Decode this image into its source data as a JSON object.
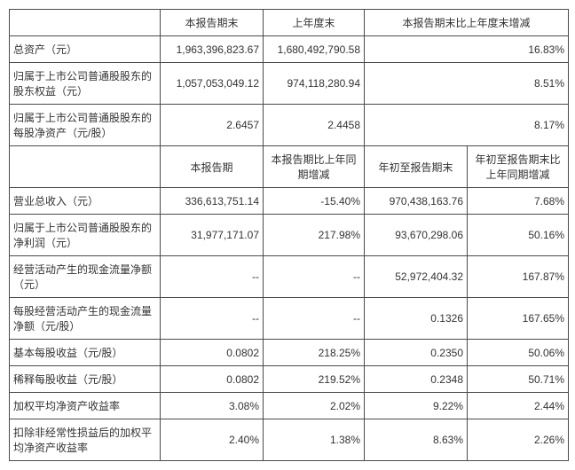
{
  "table1": {
    "headers": [
      "",
      "本报告期末",
      "上年度末",
      "本报告期末比上年度末增减"
    ],
    "rows": [
      {
        "label": "总资产（元）",
        "v1": "1,963,396,823.67",
        "v2": "1,680,492,790.58",
        "v3": "16.83%"
      },
      {
        "label": "归属于上市公司普通股股东的股东权益（元）",
        "v1": "1,057,053,049.12",
        "v2": "974,118,280.94",
        "v3": "8.51%"
      },
      {
        "label": "归属于上市公司普通股股东的每股净资产（元/股）",
        "v1": "2.6457",
        "v2": "2.4458",
        "v3": "8.17%"
      }
    ]
  },
  "table2": {
    "headers": [
      "",
      "本报告期",
      "本报告期比上年同期增减",
      "年初至报告期末",
      "年初至报告期末比上年同期增减"
    ],
    "rows": [
      {
        "label": "营业总收入（元）",
        "v1": "336,613,751.14",
        "v2": "-15.40%",
        "v3": "970,438,163.76",
        "v4": "7.68%"
      },
      {
        "label": "归属于上市公司普通股股东的净利润（元）",
        "v1": "31,977,171.07",
        "v2": "217.98%",
        "v3": "93,670,298.06",
        "v4": "50.16%"
      },
      {
        "label": "经营活动产生的现金流量净额（元）",
        "v1": "--",
        "v2": "--",
        "v3": "52,972,404.32",
        "v4": "167.87%"
      },
      {
        "label": "每股经营活动产生的现金流量净额（元/股）",
        "v1": "--",
        "v2": "--",
        "v3": "0.1326",
        "v4": "167.65%"
      },
      {
        "label": "基本每股收益（元/股）",
        "v1": "0.0802",
        "v2": "218.25%",
        "v3": "0.2350",
        "v4": "50.06%"
      },
      {
        "label": "稀释每股收益（元/股）",
        "v1": "0.0802",
        "v2": "219.52%",
        "v3": "0.2348",
        "v4": "50.71%"
      },
      {
        "label": "加权平均净资产收益率",
        "v1": "3.08%",
        "v2": "2.02%",
        "v3": "9.22%",
        "v4": "2.44%"
      },
      {
        "label": "扣除非经常性损益后的加权平均净资产收益率",
        "v1": "2.40%",
        "v2": "1.38%",
        "v3": "8.63%",
        "v4": "2.26%"
      }
    ]
  },
  "colors": {
    "border": "#4a4a4a",
    "text": "#333333",
    "background": "#ffffff"
  }
}
